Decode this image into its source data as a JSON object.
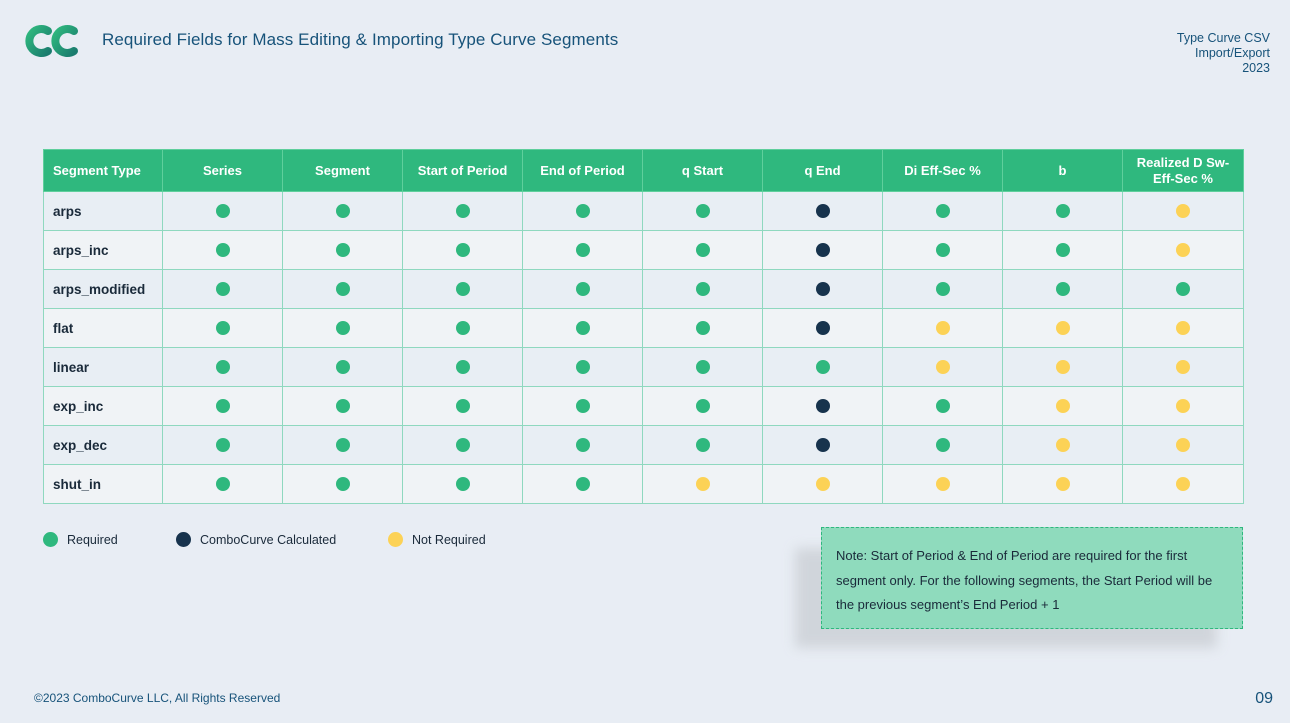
{
  "header": {
    "title": "Required Fields for Mass Editing & Importing Type Curve Segments",
    "corner_line1": "Type Curve CSV",
    "corner_line2": "Import/Export",
    "corner_line3": "2023"
  },
  "colors": {
    "required": "#2fb87e",
    "calculated": "#17334d",
    "not_required": "#fcd256",
    "header_bg": "#2fb87e"
  },
  "table": {
    "columns": [
      "Segment Type",
      "Series",
      "Segment",
      "Start of Period",
      "End of Period",
      "q Start",
      "q End",
      "Di Eff-Sec %",
      "b",
      "Realized D Sw-Eff-Sec %"
    ],
    "rows": [
      {
        "name": "arps",
        "status": [
          "req",
          "req",
          "req",
          "req",
          "req",
          "calc",
          "req",
          "req",
          "not"
        ]
      },
      {
        "name": "arps_inc",
        "status": [
          "req",
          "req",
          "req",
          "req",
          "req",
          "calc",
          "req",
          "req",
          "not"
        ]
      },
      {
        "name": "arps_modified",
        "status": [
          "req",
          "req",
          "req",
          "req",
          "req",
          "calc",
          "req",
          "req",
          "req"
        ]
      },
      {
        "name": "flat",
        "status": [
          "req",
          "req",
          "req",
          "req",
          "req",
          "calc",
          "not",
          "not",
          "not"
        ]
      },
      {
        "name": "linear",
        "status": [
          "req",
          "req",
          "req",
          "req",
          "req",
          "req",
          "not",
          "not",
          "not"
        ]
      },
      {
        "name": "exp_inc",
        "status": [
          "req",
          "req",
          "req",
          "req",
          "req",
          "calc",
          "req",
          "not",
          "not"
        ]
      },
      {
        "name": "exp_dec",
        "status": [
          "req",
          "req",
          "req",
          "req",
          "req",
          "calc",
          "req",
          "not",
          "not"
        ]
      },
      {
        "name": "shut_in",
        "status": [
          "req",
          "req",
          "req",
          "req",
          "not",
          "not",
          "not",
          "not",
          "not"
        ]
      }
    ]
  },
  "legend": {
    "required": "Required",
    "calculated": "ComboCurve Calculated",
    "not_required": "Not Required"
  },
  "note": "Note: Start of Period & End of Period are required for the first segment only. For the following segments, the Start Period will be the previous segment’s End Period + 1",
  "footer": {
    "copyright": "©2023 ComboCurve LLC, All Rights Reserved",
    "page_number": "09"
  }
}
